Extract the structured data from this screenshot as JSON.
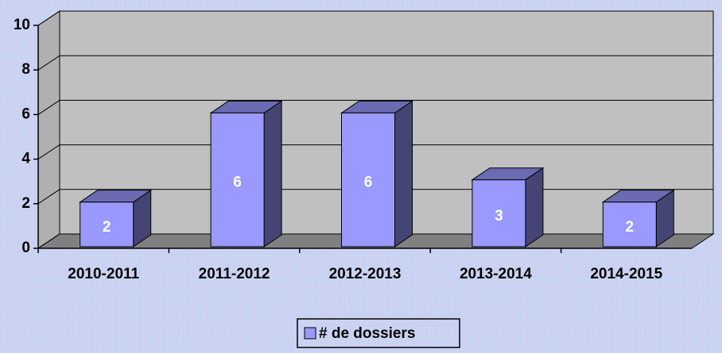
{
  "chart_data": {
    "type": "bar3d",
    "categories": [
      "2010-2011",
      "2011-2012",
      "2012-2013",
      "2013-2014",
      "2014-2015"
    ],
    "series": [
      {
        "name": "# de dossiers",
        "color": "#9999ff",
        "values": [
          2,
          6,
          6,
          3,
          2
        ]
      }
    ],
    "ylim": [
      0,
      10
    ],
    "yticks": [
      0,
      2,
      4,
      6,
      8,
      10
    ],
    "grid": true,
    "legend": "bottom"
  }
}
